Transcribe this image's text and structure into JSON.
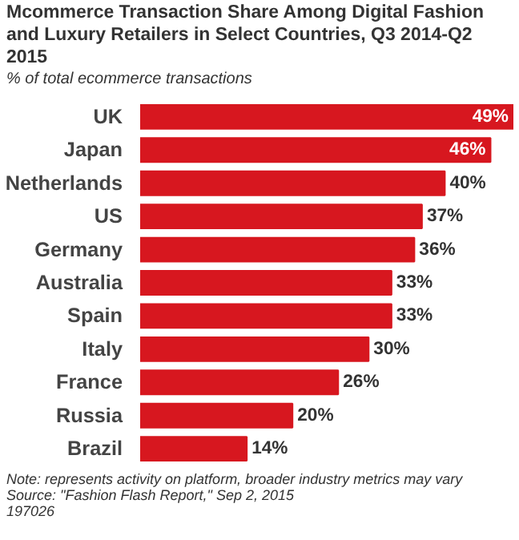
{
  "chart_data": {
    "type": "bar",
    "orientation": "horizontal",
    "title": "Mcommerce Transaction Share Among Digital Fashion and Luxury Retailers in Select Countries, Q3 2014-Q2 2015",
    "subtitle": "% of total ecommerce transactions",
    "categories": [
      "UK",
      "Japan",
      "Netherlands",
      "US",
      "Germany",
      "Australia",
      "Spain",
      "Italy",
      "France",
      "Russia",
      "Brazil"
    ],
    "values": [
      49,
      46,
      40,
      37,
      36,
      33,
      33,
      30,
      26,
      20,
      14
    ],
    "value_labels": [
      "49%",
      "46%",
      "40%",
      "37%",
      "36%",
      "33%",
      "33%",
      "30%",
      "26%",
      "20%",
      "14%"
    ],
    "color": "#d7171f",
    "grid": false,
    "annotations": [
      "Note: represents activity on platform, broader industry metrics may vary",
      "Source: \"Fashion Flash Report,\" Sep 2, 2015",
      "197026"
    ]
  }
}
